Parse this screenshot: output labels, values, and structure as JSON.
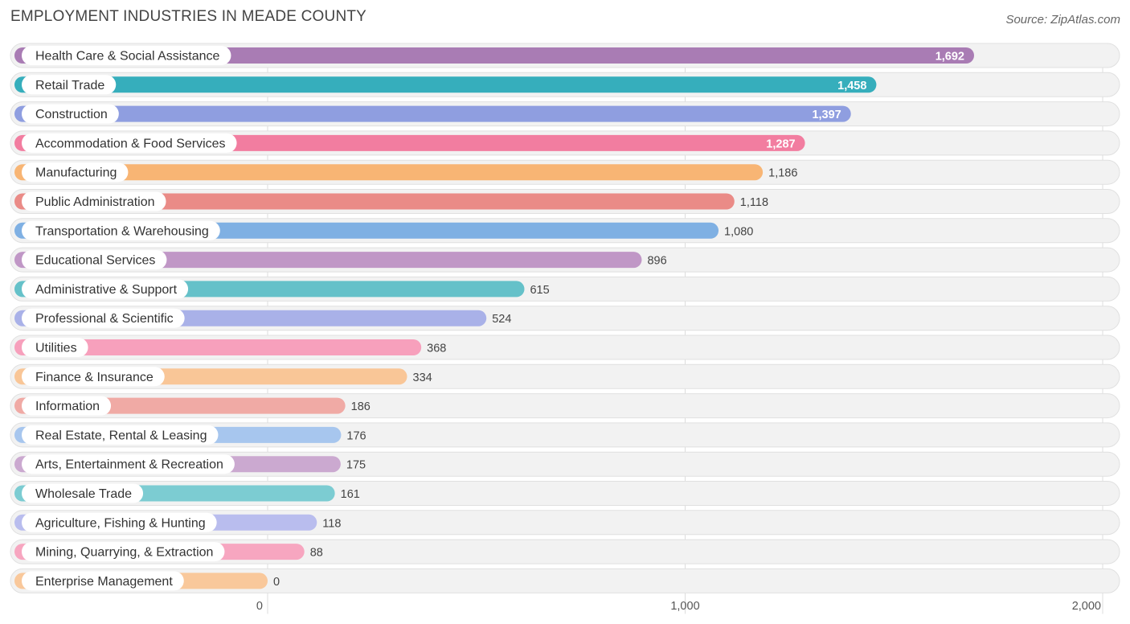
{
  "header": {
    "title": "EMPLOYMENT INDUSTRIES IN MEADE COUNTY",
    "source": "Source: ZipAtlas.com"
  },
  "chart_data": {
    "type": "bar",
    "orientation": "horizontal",
    "title": "EMPLOYMENT INDUSTRIES IN MEADE COUNTY",
    "xlabel": "",
    "ylabel": "",
    "xlim": [
      0,
      2000
    ],
    "ticks": [
      {
        "value": 0,
        "label": "0"
      },
      {
        "value": 1000,
        "label": "1,000"
      },
      {
        "value": 2000,
        "label": "2,000"
      }
    ],
    "grid": true,
    "categories": [
      "Health Care & Social Assistance",
      "Retail Trade",
      "Construction",
      "Accommodation & Food Services",
      "Manufacturing",
      "Public Administration",
      "Transportation & Warehousing",
      "Educational Services",
      "Administrative & Support",
      "Professional & Scientific",
      "Utilities",
      "Finance & Insurance",
      "Information",
      "Real Estate, Rental & Leasing",
      "Arts, Entertainment & Recreation",
      "Wholesale Trade",
      "Agriculture, Fishing & Hunting",
      "Mining, Quarrying, & Extraction",
      "Enterprise Management"
    ],
    "values": [
      1692,
      1458,
      1397,
      1287,
      1186,
      1118,
      1080,
      896,
      615,
      524,
      368,
      334,
      186,
      176,
      175,
      161,
      118,
      88,
      0
    ],
    "value_labels": [
      "1,692",
      "1,458",
      "1,397",
      "1,287",
      "1,186",
      "1,118",
      "1,080",
      "896",
      "615",
      "524",
      "368",
      "334",
      "186",
      "176",
      "175",
      "161",
      "118",
      "88",
      "0"
    ],
    "colors": [
      "#a97cb4",
      "#36aebc",
      "#8f9ee0",
      "#f27da0",
      "#f8b574",
      "#ea8b87",
      "#7fb0e3",
      "#c097c6",
      "#65c1c9",
      "#a9b1e8",
      "#f7a0bc",
      "#f9c697",
      "#f0aaa5",
      "#a7c6ee",
      "#cba9d0",
      "#7cccd2",
      "#b9bdee",
      "#f7a6c0",
      "#f9c89b"
    ]
  }
}
